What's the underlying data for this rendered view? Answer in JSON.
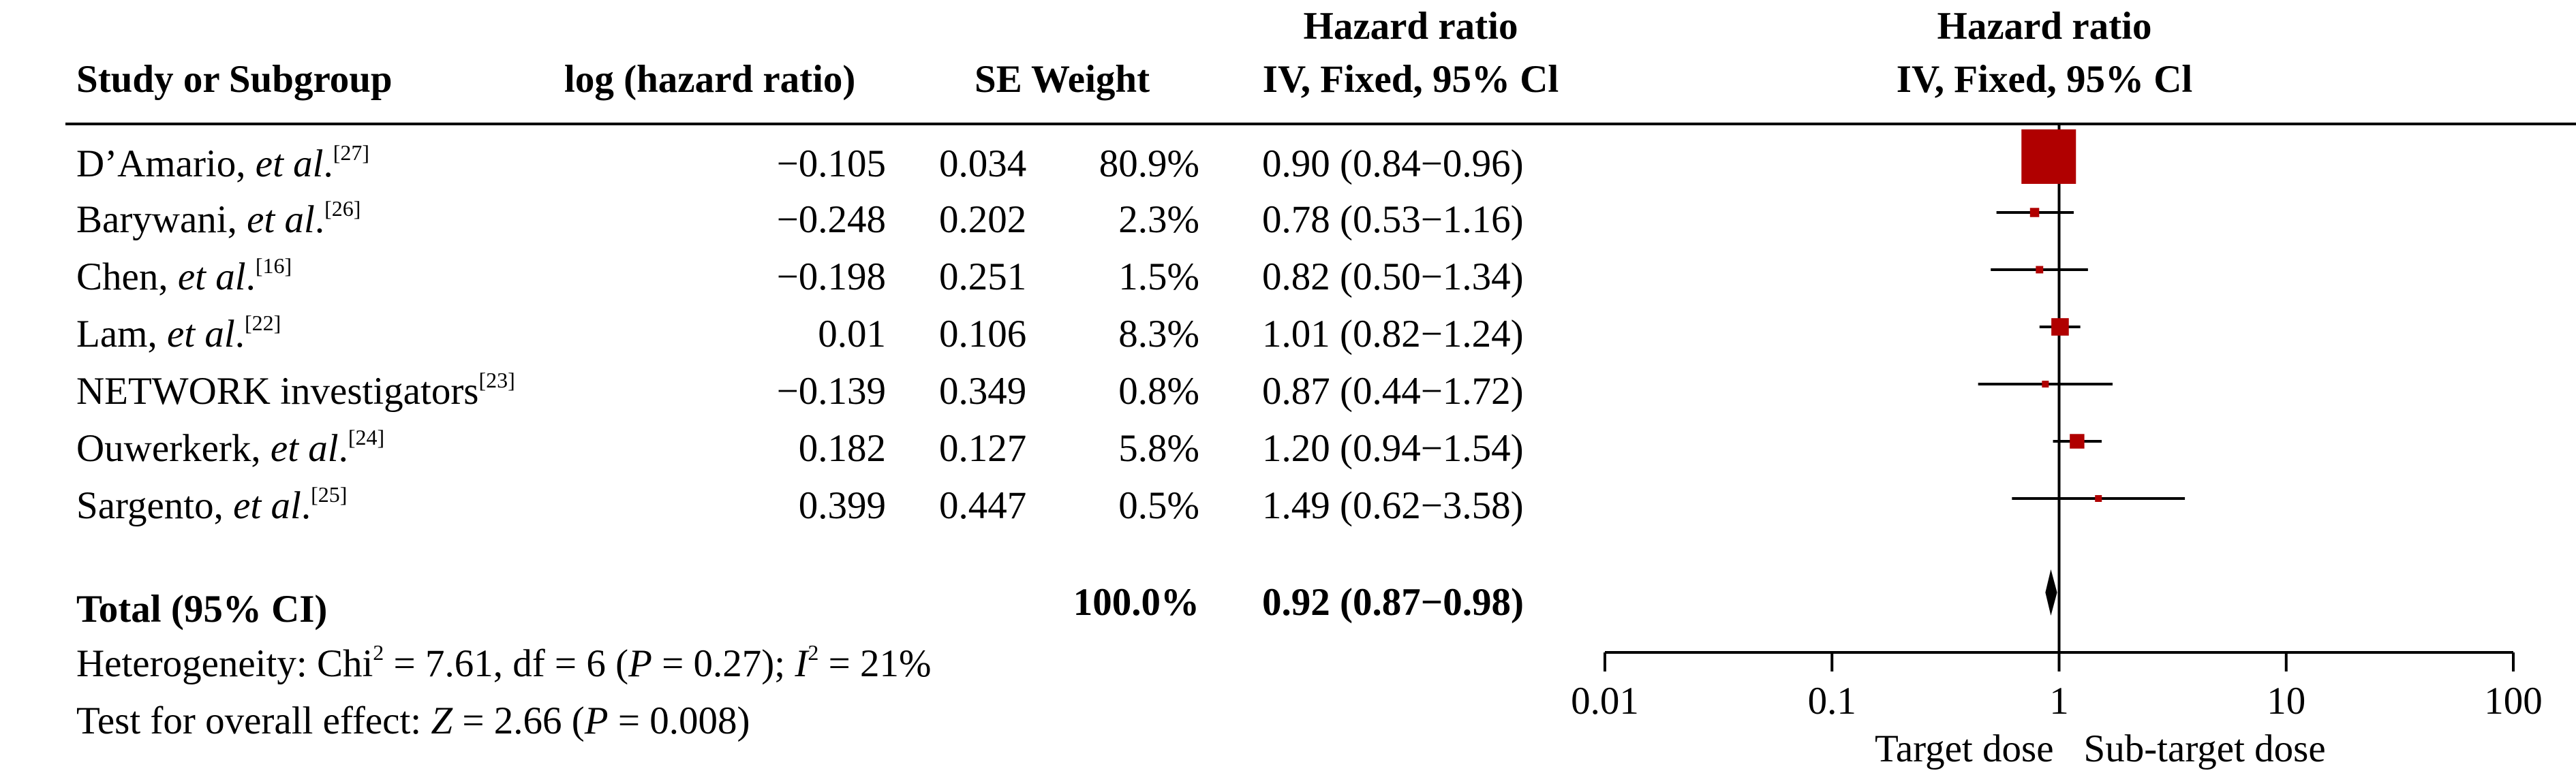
{
  "headers": {
    "study": "Study or Subgroup",
    "loghr": "log (hazard ratio)",
    "se_weight": "SE Weight",
    "hr_line1": "Hazard ratio",
    "hr_line2": "IV, Fixed, 95% Cl",
    "plot_line1": "Hazard ratio",
    "plot_line2": "IV, Fixed, 95% Cl"
  },
  "rows": [
    {
      "name": "D’Amario, ",
      "etal": "et al",
      "dot": ".",
      "ref": "[27]",
      "loghr": "−0.105",
      "se": "0.034",
      "weight": "80.9%",
      "ci": "0.90 (0.84−0.96)"
    },
    {
      "name": "Barywani, ",
      "etal": "et al",
      "dot": ".",
      "ref": "[26]",
      "loghr": "−0.248",
      "se": "0.202",
      "weight": "2.3%",
      "ci": "0.78 (0.53−1.16)"
    },
    {
      "name": "Chen, ",
      "etal": "et al",
      "dot": ".",
      "ref": "[16]",
      "loghr": "−0.198",
      "se": "0.251",
      "weight": "1.5%",
      "ci": "0.82 (0.50−1.34)"
    },
    {
      "name": "Lam, ",
      "etal": "et al",
      "dot": ".",
      "ref": "[22]",
      "loghr": "0.01",
      "se": "0.106",
      "weight": "8.3%",
      "ci": "1.01 (0.82−1.24)"
    },
    {
      "name": "NETWORK investigators",
      "etal": "",
      "dot": "",
      "ref": "[23]",
      "loghr": "−0.139",
      "se": "0.349",
      "weight": "0.8%",
      "ci": "0.87 (0.44−1.72)"
    },
    {
      "name": "Ouwerkerk, ",
      "etal": "et al",
      "dot": ".",
      "ref": "[24]",
      "loghr": "0.182",
      "se": "0.127",
      "weight": "5.8%",
      "ci": "1.20 (0.94−1.54)"
    },
    {
      "name": "Sargento, ",
      "etal": "et al",
      "dot": ".",
      "ref": "[25]",
      "loghr": "0.399",
      "se": "0.447",
      "weight": "0.5%",
      "ci": "1.49 (0.62−3.58)"
    }
  ],
  "total": {
    "label": "Total (95% CI)",
    "weight": "100.0%",
    "ci": "0.92 (0.87−0.98)"
  },
  "heterogeneity": {
    "prefix": "Heterogeneity: Chi",
    "sup1": "2",
    "mid": " = 7.61, df = 6 (",
    "p": "P",
    "mid2": " = 0.27); ",
    "i": "I",
    "sup2": "2",
    "end": " = 21%"
  },
  "overall": {
    "prefix": "Test for overall effect: ",
    "z": "Z",
    "mid": " = 2.66 (",
    "p": "P",
    "end": " = 0.008)"
  },
  "chart_data": {
    "type": "forest",
    "scale": "log",
    "xlim": [
      0.01,
      100
    ],
    "ticks": [
      0.01,
      0.1,
      1,
      10,
      100
    ],
    "tick_labels": [
      "0.01",
      "0.1",
      "1",
      "10",
      "100"
    ],
    "xlabel_left": "Target dose",
    "xlabel_right": "Sub-target dose",
    "null_value": 1,
    "marker_color": "#b00000",
    "studies": [
      {
        "hr": 0.9,
        "lo": 0.84,
        "hi": 0.96,
        "weight": 80.9
      },
      {
        "hr": 0.78,
        "lo": 0.53,
        "hi": 1.16,
        "weight": 2.3
      },
      {
        "hr": 0.82,
        "lo": 0.5,
        "hi": 1.34,
        "weight": 1.5
      },
      {
        "hr": 1.01,
        "lo": 0.82,
        "hi": 1.24,
        "weight": 8.3
      },
      {
        "hr": 0.87,
        "lo": 0.44,
        "hi": 1.72,
        "weight": 0.8
      },
      {
        "hr": 1.2,
        "lo": 0.94,
        "hi": 1.54,
        "weight": 5.8
      },
      {
        "hr": 1.49,
        "lo": 0.62,
        "hi": 3.58,
        "weight": 0.5
      }
    ],
    "total": {
      "hr": 0.92,
      "lo": 0.87,
      "hi": 0.98
    }
  }
}
